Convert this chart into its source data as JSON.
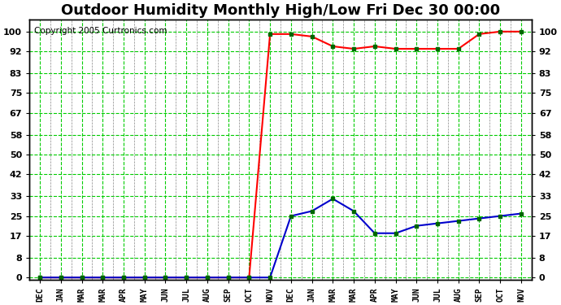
{
  "title": "Outdoor Humidity Monthly High/Low Fri Dec 30 00:00",
  "copyright": "Copyright 2005 Curtronics.com",
  "x_labels": [
    "DEC",
    "JAN",
    "MAR",
    "MAR",
    "APR",
    "MAY",
    "JUN",
    "JUL",
    "AUG",
    "SEP",
    "OCT",
    "NOV",
    "DEC",
    "JAN",
    "MAR",
    "MAR",
    "APR",
    "MAY",
    "JUN",
    "JUL",
    "AUG",
    "SEP",
    "OCT",
    "NOV"
  ],
  "high_values": [
    0,
    0,
    0,
    0,
    0,
    0,
    0,
    0,
    0,
    0,
    0,
    99,
    99,
    98,
    94,
    93,
    94,
    93,
    93,
    93,
    93,
    99,
    100,
    100
  ],
  "low_values": [
    0,
    0,
    0,
    0,
    0,
    0,
    0,
    0,
    0,
    0,
    0,
    0,
    25,
    27,
    32,
    27,
    18,
    18,
    21,
    22,
    23,
    24,
    25,
    26
  ],
  "yticks": [
    0,
    8,
    17,
    25,
    33,
    42,
    50,
    58,
    67,
    75,
    83,
    92,
    100
  ],
  "ylim": [
    -1,
    105
  ],
  "bg_color": "#ffffff",
  "plot_bg_color": "#ffffff",
  "grid_color_green": "#00cc00",
  "grid_color_gray": "#888888",
  "high_color": "#ff0000",
  "low_color": "#0000cc",
  "marker_color": "#006600",
  "border_color": "#000000",
  "title_fontsize": 13,
  "copyright_fontsize": 7.5
}
